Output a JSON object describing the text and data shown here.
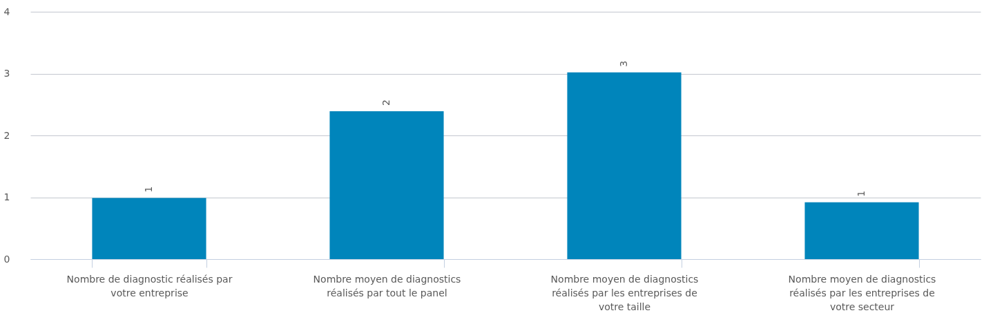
{
  "chart_data": {
    "type": "bar",
    "categories": [
      "Nombre de diagnostic réalisés par votre entreprise",
      "Nombre moyen de diagnostics réalisés par tout le panel",
      "Nombre moyen de diagnostics réalisés par les entreprises de votre taille",
      "Nombre moyen de diagnostics réalisés par les entreprises de votre secteur"
    ],
    "values": [
      0.99,
      2.39,
      3.02,
      0.92
    ],
    "value_labels": [
      "1",
      "2",
      "3",
      "1"
    ],
    "color": "#0085bb",
    "ylim": [
      0,
      4
    ],
    "yticks": [
      0,
      1,
      2,
      3,
      4
    ],
    "grid": "y"
  }
}
